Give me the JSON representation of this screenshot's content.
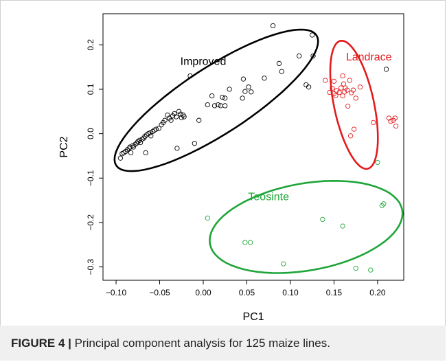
{
  "caption": {
    "label": "FIGURE 4 |",
    "text": " Principal component analysis for 125 maize lines."
  },
  "chart_data": {
    "type": "scatter",
    "xlabel": "PC1",
    "ylabel": "PC2",
    "xlim": [
      -0.115,
      0.23
    ],
    "ylim": [
      -0.33,
      0.27
    ],
    "xticks": [
      -0.1,
      -0.05,
      0.0,
      0.05,
      0.1,
      0.15,
      0.2
    ],
    "xtick_labels": [
      "−0.10",
      "−0.05",
      "0.00",
      "0.05",
      "0.10",
      "0.15",
      "0.20"
    ],
    "yticks": [
      -0.3,
      -0.2,
      -0.1,
      0.0,
      0.1,
      0.2
    ],
    "ytick_labels": [
      "−0.3",
      "−0.2",
      "−0.1",
      "0.0",
      "0.1",
      "0.2"
    ],
    "grid": false,
    "series": [
      {
        "name": "Improved",
        "color": "#000000",
        "label_at": [
          0.0,
          0.155
        ],
        "ellipse": {
          "center": [
            0.015,
            0.075
          ],
          "radii": [
            0.137,
            0.075
          ],
          "angle_deg": 33
        },
        "points": [
          [
            -0.095,
            -0.055
          ],
          [
            -0.093,
            -0.045
          ],
          [
            -0.091,
            -0.043
          ],
          [
            -0.089,
            -0.04
          ],
          [
            -0.087,
            -0.036
          ],
          [
            -0.085,
            -0.033
          ],
          [
            -0.084,
            -0.03
          ],
          [
            -0.083,
            -0.043
          ],
          [
            -0.081,
            -0.027
          ],
          [
            -0.08,
            -0.03
          ],
          [
            -0.078,
            -0.024
          ],
          [
            -0.076,
            -0.021
          ],
          [
            -0.075,
            -0.018
          ],
          [
            -0.073,
            -0.015
          ],
          [
            -0.072,
            -0.02
          ],
          [
            -0.07,
            -0.012
          ],
          [
            -0.068,
            -0.01
          ],
          [
            -0.067,
            -0.006
          ],
          [
            -0.066,
            -0.043
          ],
          [
            -0.065,
            -0.003
          ],
          [
            -0.063,
            0.0
          ],
          [
            -0.061,
            0.002
          ],
          [
            -0.06,
            -0.005
          ],
          [
            -0.058,
            0.005
          ],
          [
            -0.056,
            0.008
          ],
          [
            -0.054,
            0.01
          ],
          [
            -0.051,
            0.012
          ],
          [
            -0.048,
            0.02
          ],
          [
            -0.046,
            0.025
          ],
          [
            -0.044,
            0.03
          ],
          [
            -0.041,
            0.042
          ],
          [
            -0.039,
            0.035
          ],
          [
            -0.037,
            0.03
          ],
          [
            -0.035,
            0.04
          ],
          [
            -0.033,
            0.045
          ],
          [
            -0.031,
            0.038
          ],
          [
            -0.03,
            -0.033
          ],
          [
            -0.028,
            0.05
          ],
          [
            -0.026,
            0.044
          ],
          [
            -0.025,
            0.036
          ],
          [
            -0.023,
            0.042
          ],
          [
            -0.022,
            0.038
          ],
          [
            -0.005,
            0.03
          ],
          [
            -0.01,
            -0.022
          ],
          [
            -0.015,
            0.13
          ],
          [
            0.005,
            0.065
          ],
          [
            0.01,
            0.085
          ],
          [
            0.013,
            0.063
          ],
          [
            0.017,
            0.065
          ],
          [
            0.02,
            0.063
          ],
          [
            0.022,
            0.082
          ],
          [
            0.025,
            0.08
          ],
          [
            0.025,
            0.063
          ],
          [
            0.03,
            0.1
          ],
          [
            0.045,
            0.08
          ],
          [
            0.046,
            0.123
          ],
          [
            0.048,
            0.095
          ],
          [
            0.052,
            0.105
          ],
          [
            0.055,
            0.094
          ],
          [
            0.07,
            0.125
          ],
          [
            0.08,
            0.243
          ],
          [
            0.087,
            0.158
          ],
          [
            0.09,
            0.14
          ],
          [
            0.11,
            0.175
          ],
          [
            0.118,
            0.11
          ],
          [
            0.121,
            0.105
          ],
          [
            0.125,
            0.222
          ],
          [
            0.126,
            0.175
          ],
          [
            0.21,
            0.145
          ]
        ]
      },
      {
        "name": "Landrace",
        "color": "#e41a1c",
        "label_at": [
          0.19,
          0.165
        ],
        "ellipse": {
          "center": [
            0.173,
            0.065
          ],
          "radii": [
            0.075,
            0.045
          ],
          "angle_deg": -78
        },
        "points": [
          [
            0.14,
            0.12
          ],
          [
            0.145,
            0.093
          ],
          [
            0.148,
            0.102
          ],
          [
            0.15,
            0.118
          ],
          [
            0.15,
            0.09
          ],
          [
            0.152,
            0.086
          ],
          [
            0.153,
            0.097
          ],
          [
            0.156,
            0.093
          ],
          [
            0.158,
            0.103
          ],
          [
            0.16,
            0.085
          ],
          [
            0.16,
            0.13
          ],
          [
            0.161,
            0.112
          ],
          [
            0.162,
            0.094
          ],
          [
            0.163,
            0.103
          ],
          [
            0.165,
            0.098
          ],
          [
            0.166,
            0.062
          ],
          [
            0.168,
            0.12
          ],
          [
            0.169,
            -0.005
          ],
          [
            0.17,
            0.092
          ],
          [
            0.172,
            0.098
          ],
          [
            0.173,
            0.01
          ],
          [
            0.175,
            0.08
          ],
          [
            0.18,
            0.105
          ],
          [
            0.195,
            0.025
          ],
          [
            0.213,
            0.035
          ],
          [
            0.215,
            0.028
          ],
          [
            0.218,
            0.03
          ],
          [
            0.22,
            0.035
          ],
          [
            0.221,
            0.017
          ]
        ]
      },
      {
        "name": "Teosinte",
        "color": "#1ea538",
        "label_at": [
          0.075,
          -0.15
        ],
        "ellipse": {
          "center": [
            0.118,
            -0.21
          ],
          "radii": [
            0.112,
            0.098
          ],
          "angle_deg": 10
        },
        "points": [
          [
            0.005,
            -0.19
          ],
          [
            0.048,
            -0.245
          ],
          [
            0.054,
            -0.245
          ],
          [
            0.092,
            -0.293
          ],
          [
            0.137,
            -0.193
          ],
          [
            0.16,
            -0.208
          ],
          [
            0.175,
            -0.303
          ],
          [
            0.192,
            -0.307
          ],
          [
            0.2,
            -0.065
          ],
          [
            0.205,
            -0.162
          ],
          [
            0.207,
            -0.158
          ]
        ]
      }
    ]
  }
}
